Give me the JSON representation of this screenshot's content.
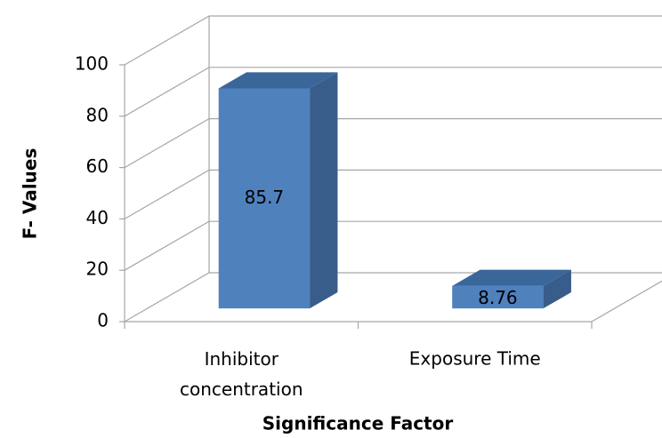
{
  "chart_data": {
    "type": "bar3d",
    "categories": [
      "Inhibitor concentration",
      "Exposure Time"
    ],
    "values": [
      85.7,
      8.76
    ],
    "color": "#4f81bd",
    "xlabel": "Significance Factor",
    "ylabel": "F- Values",
    "ylim": [
      0,
      100
    ],
    "yticks": [
      0,
      20,
      40,
      60,
      80,
      100
    ],
    "grid": true
  }
}
